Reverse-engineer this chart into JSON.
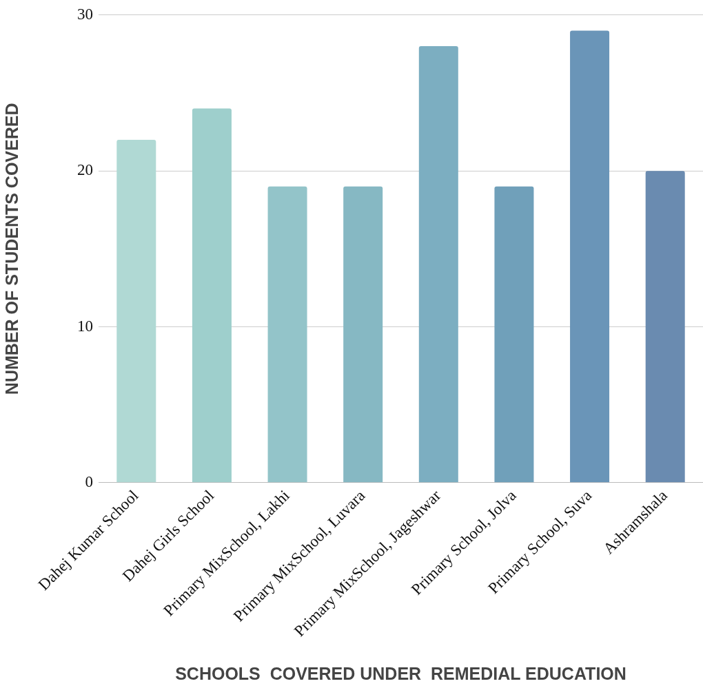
{
  "chart_data": {
    "type": "bar",
    "xlabel": "SCHOOLS  COVERED UNDER  REMEDIAL EDUCATION",
    "ylabel": "NUMBER OF STUDENTS COVERED",
    "categories": [
      "Dahej Kumar School",
      "Dahej Girls School",
      "Primary MixSchool, Lakhi",
      "Primary MixSchool, Luvara",
      "Primary MixSchool, Jageshwar",
      "Primary School, Jolva",
      "Primary School, Suva",
      "Ashramshala"
    ],
    "values": [
      22,
      24,
      19,
      19,
      28,
      19,
      29,
      20
    ],
    "colors": [
      "#b0d9d4",
      "#9ecfcc",
      "#93c4c9",
      "#86b8c3",
      "#7caec1",
      "#70a0ba",
      "#6a95b8",
      "#6a8bb0"
    ],
    "ylim": [
      0,
      30
    ],
    "yticks": [
      0,
      10,
      20,
      30
    ],
    "grid": "y",
    "legend": false
  }
}
